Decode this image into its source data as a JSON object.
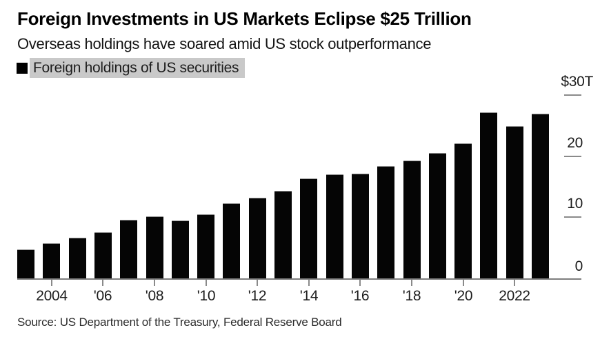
{
  "header": {
    "title": "Foreign Investments in US Markets Eclipse $25 Trillion",
    "subtitle": "Overseas holdings have soared amid US stock outperformance"
  },
  "legend": {
    "label": "Foreign holdings of US securities",
    "swatch_color": "#000000",
    "highlight_color": "#c9c9c9"
  },
  "chart_data": {
    "type": "bar",
    "title": "Foreign Investments in US Markets Eclipse $25 Trillion",
    "subtitle": "Overseas holdings have soared amid US stock outperformance",
    "unit": "USD trillions",
    "categories": [
      2003,
      2004,
      2005,
      2006,
      2007,
      2008,
      2009,
      2010,
      2011,
      2012,
      2013,
      2014,
      2015,
      2016,
      2017,
      2018,
      2019,
      2020,
      2021,
      2022,
      2023
    ],
    "series": [
      {
        "name": "Foreign holdings of US securities",
        "values": [
          4.7,
          5.7,
          6.6,
          7.5,
          9.6,
          10.2,
          9.5,
          10.5,
          12.3,
          13.2,
          14.3,
          16.3,
          17.0,
          17.1,
          18.4,
          19.3,
          20.5,
          22.1,
          27.2,
          24.9,
          26.9
        ]
      }
    ],
    "bar_color": "#050505",
    "axis_color": "#7d7d7d",
    "tick_color": "#8a8a8a",
    "ylim": [
      0,
      30
    ],
    "y_ticks": [
      {
        "value": 0,
        "label": "0"
      },
      {
        "value": 10,
        "label": "10"
      },
      {
        "value": 20,
        "label": "20"
      },
      {
        "value": 30,
        "label": "$30T"
      }
    ],
    "x_ticks": [
      {
        "year": 2004,
        "label": "2004"
      },
      {
        "year": 2006,
        "label": "'06"
      },
      {
        "year": 2008,
        "label": "'08"
      },
      {
        "year": 2010,
        "label": "'10"
      },
      {
        "year": 2012,
        "label": "'12"
      },
      {
        "year": 2014,
        "label": "'14"
      },
      {
        "year": 2016,
        "label": "'16"
      },
      {
        "year": 2018,
        "label": "'18"
      },
      {
        "year": 2020,
        "label": "'20"
      },
      {
        "year": 2022,
        "label": "2022"
      }
    ],
    "grid": false,
    "legend_position": "top-left",
    "value_axis_side": "right"
  },
  "footer": {
    "source": "Source: US Department of the Treasury, Federal Reserve Board"
  }
}
